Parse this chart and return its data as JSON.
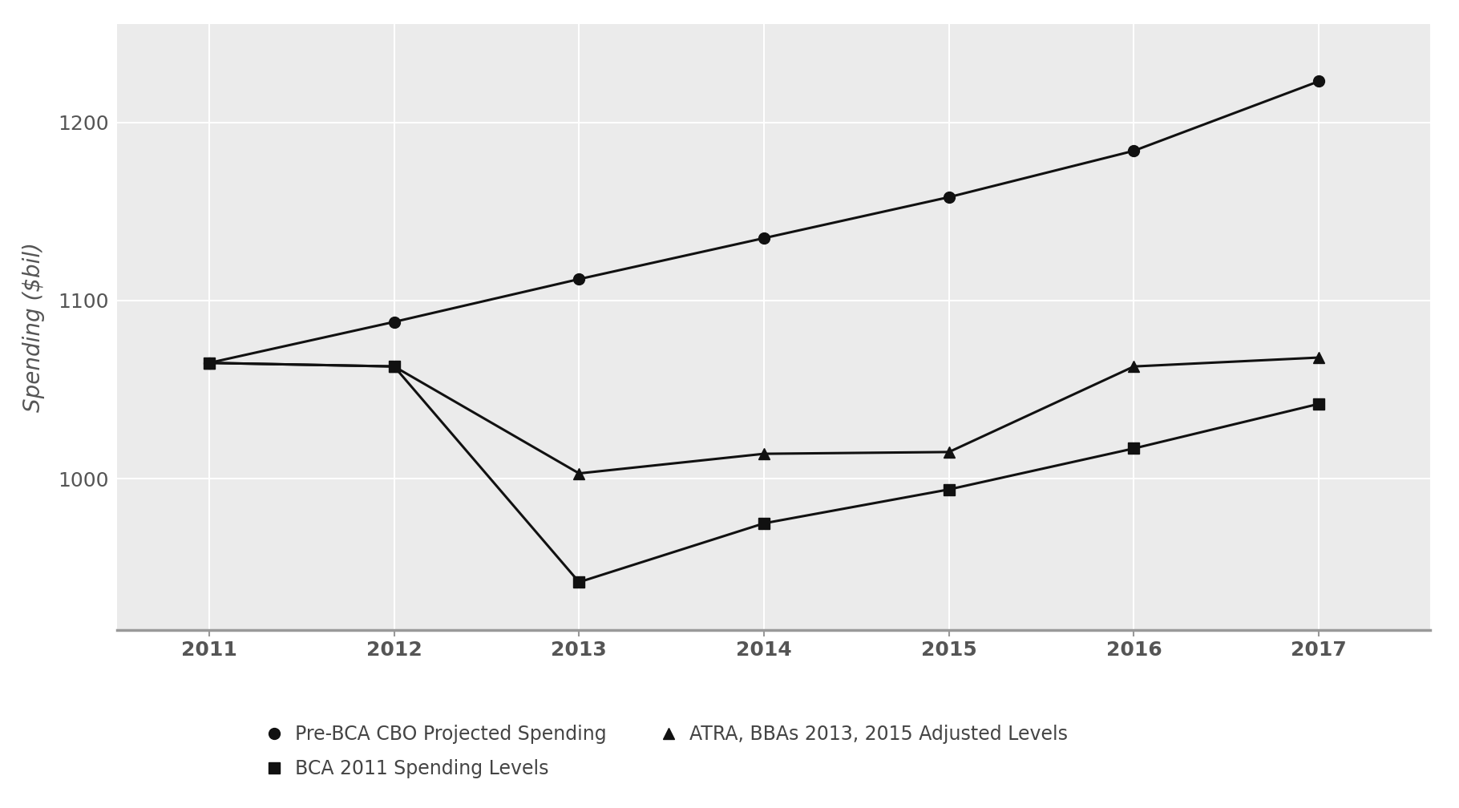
{
  "years": [
    2011,
    2012,
    2013,
    2014,
    2015,
    2016,
    2017
  ],
  "pre_bca_cbo": [
    1065,
    1088,
    1112,
    1135,
    1158,
    1184,
    1223
  ],
  "bca_2011": [
    1065,
    1063,
    942,
    975,
    994,
    1017,
    1042
  ],
  "atra_bbas": [
    1065,
    1063,
    1003,
    1014,
    1015,
    1063,
    1068
  ],
  "ylabel": "Spending ($bil)",
  "ylim_min": 915,
  "ylim_max": 1255,
  "yticks": [
    1000,
    1100,
    1200
  ],
  "background_color": "#ebebeb",
  "line_color": "#111111",
  "grid_color": "#ffffff",
  "legend_entries": [
    {
      "label": "Pre-BCA CBO Projected Spending",
      "marker": "o"
    },
    {
      "label": "BCA 2011 Spending Levels",
      "marker": "s"
    },
    {
      "label": "ATRA, BBAs 2013, 2015 Adjusted Levels",
      "marker": "^"
    }
  ],
  "marker_size": 10,
  "linewidth": 2.2,
  "tick_label_color": "#555555",
  "tick_fontsize": 18,
  "ylabel_fontsize": 20,
  "legend_fontsize": 17
}
